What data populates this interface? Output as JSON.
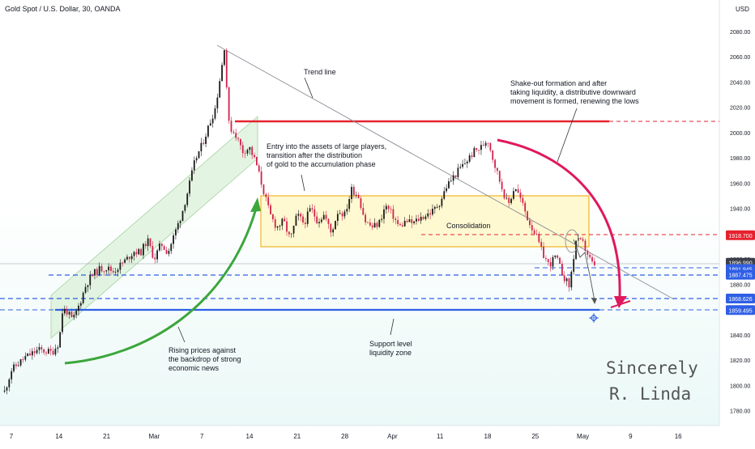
{
  "header": {
    "title": "Gold Spot / U.S. Dollar, 30, OANDA",
    "currency": "USD"
  },
  "chart_data": {
    "type": "candlestick",
    "title": "Gold Spot / U.S. Dollar, 30, OANDA",
    "ylabel": "USD",
    "ylim": [
      1770,
      2090
    ],
    "grid": false,
    "y_ticks": [
      1780,
      1800,
      1820,
      1840,
      1860,
      1880,
      1900,
      1920,
      1940,
      1960,
      1980,
      2000,
      2020,
      2040,
      2060,
      2080
    ],
    "x_ticks": [
      {
        "label": "7",
        "day": 0
      },
      {
        "label": "14",
        "day": 7
      },
      {
        "label": "21",
        "day": 14
      },
      {
        "label": "Mar",
        "day": 21
      },
      {
        "label": "7",
        "day": 28
      },
      {
        "label": "14",
        "day": 35
      },
      {
        "label": "21",
        "day": 42
      },
      {
        "label": "28",
        "day": 49
      },
      {
        "label": "Apr",
        "day": 56
      },
      {
        "label": "11",
        "day": 63
      },
      {
        "label": "18",
        "day": 70
      },
      {
        "label": "25",
        "day": 77
      },
      {
        "label": "May",
        "day": 84
      },
      {
        "label": "9",
        "day": 91
      },
      {
        "label": "16",
        "day": 98
      }
    ],
    "price_path": [
      [
        -1,
        1795
      ],
      [
        0,
        1812
      ],
      [
        2,
        1822
      ],
      [
        4,
        1828
      ],
      [
        6,
        1826
      ],
      [
        7,
        1834
      ],
      [
        7.5,
        1858
      ],
      [
        8,
        1860
      ],
      [
        9,
        1851
      ],
      [
        10,
        1864
      ],
      [
        11,
        1880
      ],
      [
        12,
        1888
      ],
      [
        13,
        1892
      ],
      [
        14,
        1893
      ],
      [
        15,
        1890
      ],
      [
        16,
        1895
      ],
      [
        17,
        1900
      ],
      [
        18,
        1906
      ],
      [
        19,
        1905
      ],
      [
        20,
        1915
      ],
      [
        21,
        1900
      ],
      [
        22,
        1912
      ],
      [
        23,
        1905
      ],
      [
        24,
        1920
      ],
      [
        25,
        1935
      ],
      [
        26,
        1955
      ],
      [
        27,
        1978
      ],
      [
        28,
        1990
      ],
      [
        29,
        2005
      ],
      [
        30,
        2020
      ],
      [
        31,
        2055
      ],
      [
        31.3,
        2068
      ],
      [
        31.6,
        2040
      ],
      [
        32,
        2005
      ],
      [
        33,
        1998
      ],
      [
        34,
        1985
      ],
      [
        35,
        1988
      ],
      [
        36,
        1975
      ],
      [
        37,
        1955
      ],
      [
        38,
        1935
      ],
      [
        39,
        1925
      ],
      [
        40,
        1930
      ],
      [
        41,
        1915
      ],
      [
        42,
        1935
      ],
      [
        43,
        1928
      ],
      [
        44,
        1940
      ],
      [
        45,
        1930
      ],
      [
        46,
        1935
      ],
      [
        47,
        1920
      ],
      [
        48,
        1938
      ],
      [
        49,
        1935
      ],
      [
        50,
        1955
      ],
      [
        51,
        1950
      ],
      [
        52,
        1930
      ],
      [
        53,
        1925
      ],
      [
        54,
        1928
      ],
      [
        55,
        1942
      ],
      [
        56,
        1935
      ],
      [
        57,
        1925
      ],
      [
        58,
        1930
      ],
      [
        59,
        1928
      ],
      [
        60,
        1932
      ],
      [
        61,
        1935
      ],
      [
        62,
        1938
      ],
      [
        63,
        1945
      ],
      [
        64,
        1958
      ],
      [
        65,
        1965
      ],
      [
        66,
        1972
      ],
      [
        67,
        1978
      ],
      [
        68,
        1985
      ],
      [
        69,
        1988
      ],
      [
        70,
        1995
      ],
      [
        71,
        1975
      ],
      [
        72,
        1958
      ],
      [
        73,
        1942
      ],
      [
        74,
        1958
      ],
      [
        75,
        1945
      ],
      [
        76,
        1930
      ],
      [
        77,
        1920
      ],
      [
        78,
        1905
      ],
      [
        79,
        1895
      ],
      [
        80,
        1902
      ],
      [
        81,
        1888
      ],
      [
        82,
        1878
      ],
      [
        83,
        1915
      ],
      [
        84,
        1912
      ],
      [
        85,
        1900
      ],
      [
        86,
        1890
      ]
    ],
    "price_labels": [
      {
        "value": "1918.700",
        "price": 1918.7,
        "color": "#e5222e"
      },
      {
        "value": "1896.990",
        "price": 1896.99,
        "color": "#3a3f4b"
      },
      {
        "value": "1891.945",
        "price": 1891.945,
        "color": "#2f5fe6"
      },
      {
        "value": "1887.475",
        "price": 1887.475,
        "color": "#2f5fe6"
      },
      {
        "value": "1868.626",
        "price": 1868.626,
        "color": "#2f5fe6"
      },
      {
        "value": "1859.495",
        "price": 1859.495,
        "color": "#2f5fe6"
      }
    ],
    "annotations": {
      "trend_line": "Trend line",
      "shakeout": [
        "Shake-out formation and after",
        "taking liquidity, a distributive downward",
        "movement is formed, renewing the lows"
      ],
      "entry": [
        "Entry into the assets of large players,",
        "transition after the distribution",
        "of gold to the accumulation phase"
      ],
      "consolidation": "Consolidation",
      "rising": [
        "Rising prices against",
        "the backdrop of strong",
        "economic news"
      ],
      "support": [
        "Support level",
        "liquidity zone"
      ]
    },
    "signature": [
      "Sincerely",
      "R. Linda"
    ]
  },
  "colors": {
    "candle_up": "#1b1b1b",
    "candle_down": "#d0224c",
    "resistance": "#e5222e",
    "support": "#2f5fe6",
    "consolidation_fill": "#fff7c2",
    "consolidation_border": "#f2a500",
    "channel_fill": "#d8f0d6",
    "rise_arrow": "#3ca63c",
    "fall_arrow": "#e0195c"
  }
}
